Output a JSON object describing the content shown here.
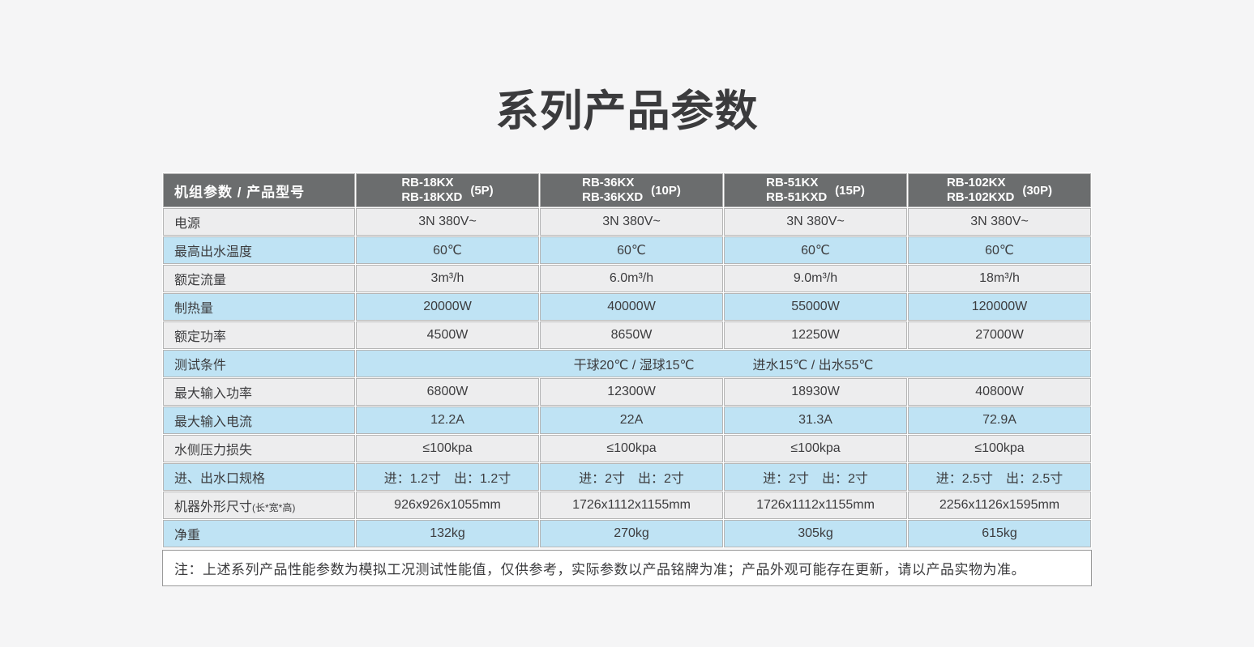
{
  "page": {
    "title": "系列产品参数"
  },
  "table": {
    "header": {
      "param_label": "机组参数 / 产品型号",
      "models": [
        {
          "line1": "RB-18KX",
          "line2": "RB-18KXD",
          "power": "(5P)"
        },
        {
          "line1": "RB-36KX",
          "line2": "RB-36KXD",
          "power": "(10P)"
        },
        {
          "line1": "RB-51KX",
          "line2": "RB-51KXD",
          "power": "(15P)"
        },
        {
          "line1": "RB-102KX",
          "line2": "RB-102KXD",
          "power": "(30P)"
        }
      ]
    },
    "rows": [
      {
        "label": "电源",
        "tone": "gray",
        "values": [
          "3N 380V~",
          "3N 380V~",
          "3N 380V~",
          "3N 380V~"
        ]
      },
      {
        "label": "最高出水温度",
        "tone": "blue",
        "values": [
          "60℃",
          "60℃",
          "60℃",
          "60℃"
        ]
      },
      {
        "label": "额定流量",
        "tone": "gray",
        "values": [
          "3m³/h",
          "6.0m³/h",
          "9.0m³/h",
          "18m³/h"
        ]
      },
      {
        "label": "制热量",
        "tone": "blue",
        "values": [
          "20000W",
          "40000W",
          "55000W",
          "120000W"
        ]
      },
      {
        "label": "额定功率",
        "tone": "gray",
        "values": [
          "4500W",
          "8650W",
          "12250W",
          "27000W"
        ]
      },
      {
        "label": "测试条件",
        "tone": "blue",
        "span_values": [
          "干球20℃ / 湿球15℃",
          "进水15℃ / 出水55℃"
        ]
      },
      {
        "label": "最大输入功率",
        "tone": "gray",
        "values": [
          "6800W",
          "12300W",
          "18930W",
          "40800W"
        ]
      },
      {
        "label": "最大输入电流",
        "tone": "blue",
        "values": [
          "12.2A",
          "22A",
          "31.3A",
          "72.9A"
        ]
      },
      {
        "label": "水侧压力损失",
        "tone": "gray",
        "values": [
          "≤100kpa",
          "≤100kpa",
          "≤100kpa",
          "≤100kpa"
        ]
      },
      {
        "label": "进、出水口规格",
        "tone": "blue",
        "values": [
          "进：1.2寸　出：1.2寸",
          "进：2寸　出：2寸",
          "进：2寸　出：2寸",
          "进：2.5寸　出：2.5寸"
        ]
      },
      {
        "label": "机器外形尺寸",
        "label_small": "(长*宽*高)",
        "tone": "gray",
        "values": [
          "926x926x1055mm",
          "1726x1112x1155mm",
          "1726x1112x1155mm",
          "2256x1126x1595mm"
        ]
      },
      {
        "label": "净重",
        "tone": "blue",
        "values": [
          "132kg",
          "270kg",
          "305kg",
          "615kg"
        ]
      }
    ],
    "note": "注：上述系列产品性能参数为模拟工况测试性能值，仅供参考，实际参数以产品铭牌为准；产品外观可能存在更新，请以产品实物为准。"
  },
  "colors": {
    "page_bg": "#f5f5f6",
    "header_bg": "#6b6d6e",
    "header_text": "#ffffff",
    "row_gray": "#ededee",
    "row_blue": "#bfe3f4",
    "cell_text": "#3c3c3e",
    "grid_line": "#b5b5b5"
  }
}
